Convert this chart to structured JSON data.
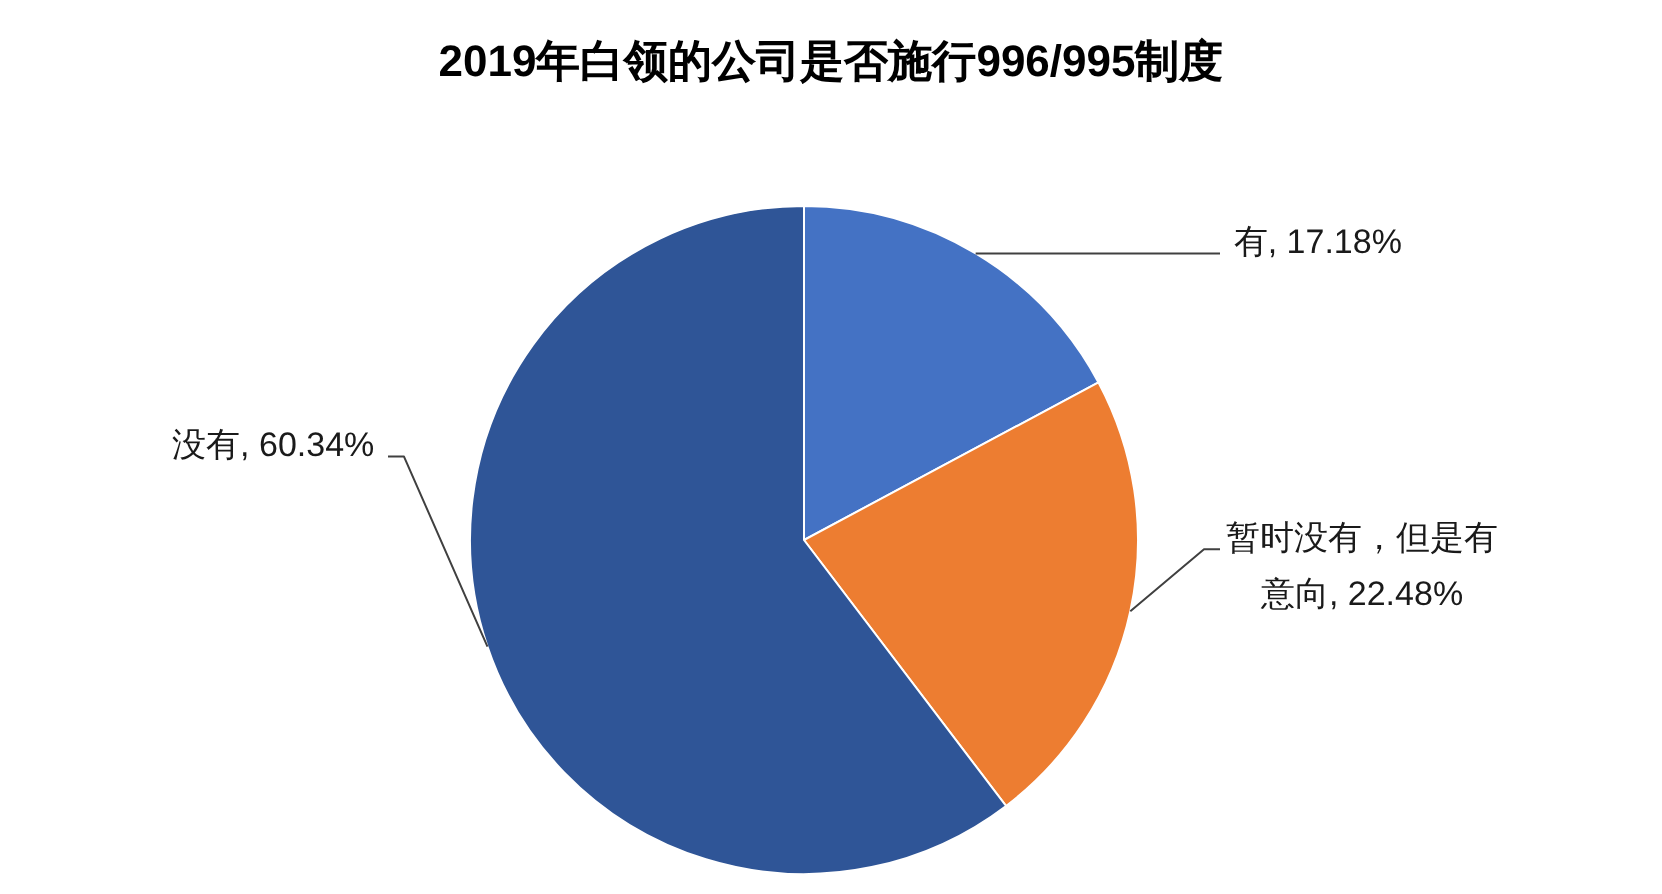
{
  "chart_data": {
    "type": "pie",
    "title": "2019年白领的公司是否施行996/995制度",
    "categories": [
      "有",
      "暂时没有，但是有意向",
      "没有"
    ],
    "values": [
      17.18,
      22.48,
      60.34
    ],
    "colors": [
      "#4472c4",
      "#ed7d31",
      "#2f5597"
    ],
    "value_labels": [
      "17.18%",
      "22.48%",
      "60.34%"
    ]
  }
}
